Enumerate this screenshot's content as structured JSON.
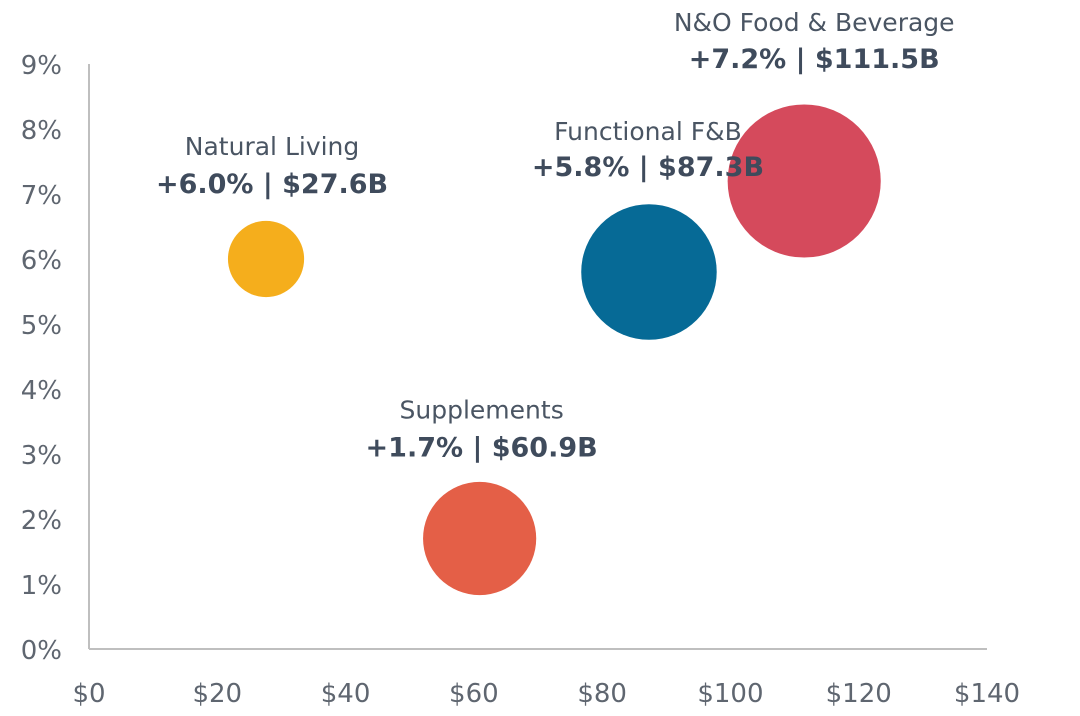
{
  "chart_data": {
    "type": "scatter",
    "subtype": "bubble",
    "title": "",
    "xlabel": "",
    "ylabel": "",
    "xlim": [
      0,
      140
    ],
    "ylim": [
      0,
      9
    ],
    "grid": false,
    "x_ticks": [
      "$0",
      "$20",
      "$40",
      "$60",
      "$80",
      "$100",
      "$120",
      "$140"
    ],
    "x_tick_values": [
      0,
      20,
      40,
      60,
      80,
      100,
      120,
      140
    ],
    "y_ticks": [
      "0%",
      "1%",
      "2%",
      "3%",
      "4%",
      "5%",
      "6%",
      "7%",
      "8%",
      "9%"
    ],
    "y_tick_values": [
      0,
      1,
      2,
      3,
      4,
      5,
      6,
      7,
      8,
      9
    ],
    "series": [
      {
        "name": "Natural Living",
        "x": 27.6,
        "y": 6.0,
        "size": 27.6,
        "label": "+6.0% | $27.6B",
        "color": "#F5AE1C"
      },
      {
        "name": "Supplements",
        "x": 60.9,
        "y": 1.7,
        "size": 60.9,
        "label": "+1.7% | $60.9B",
        "color": "#E45F47"
      },
      {
        "name": "Functional F&B",
        "x": 87.3,
        "y": 5.8,
        "size": 87.3,
        "label": "+5.8% | $87.3B",
        "color": "#066A96"
      },
      {
        "name": "N&O Food & Beverage",
        "x": 111.5,
        "y": 7.2,
        "size": 111.5,
        "label": "+7.2% | $111.5B",
        "color": "#D54A5C"
      }
    ]
  },
  "colors": {
    "axis": "#BFBFBF",
    "tick_text": "#5F6670",
    "label_text": "#3F4B5C"
  }
}
